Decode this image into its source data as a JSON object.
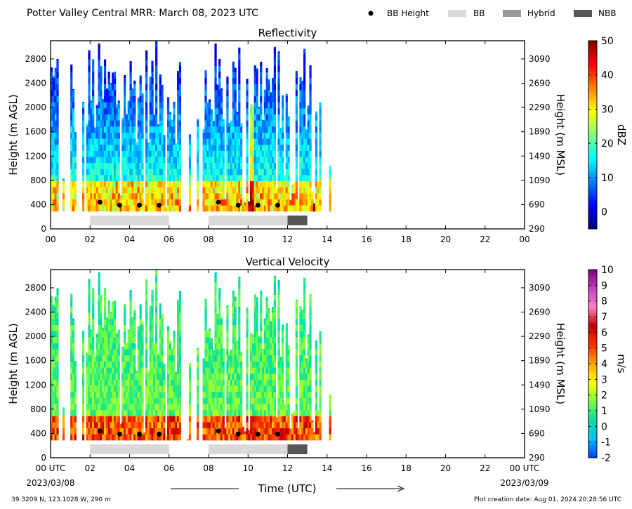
{
  "header": {
    "title": "Potter Valley Central MRR:  March 08, 2023 UTC",
    "legend": [
      {
        "label": "BB Height",
        "kind": "dot",
        "color": "#000000"
      },
      {
        "label": "BB",
        "kind": "swatch",
        "color": "#d9d9d9"
      },
      {
        "label": "Hybrid",
        "kind": "swatch",
        "color": "#999999"
      },
      {
        "label": "NBB",
        "kind": "swatch",
        "color": "#555555"
      }
    ]
  },
  "footer": {
    "location": "39.3209 N, 123.1028 W, 290 m",
    "creation": "Plot creation date: Aug 01, 2024 20:28:56 UTC",
    "time_label": "Time (UTC)",
    "start_date": "2023/03/08",
    "end_date": "2023/03/09"
  },
  "chart_data": [
    {
      "type": "heatmap",
      "title": "Reflectivity",
      "ylabel": "Height (m AGL)",
      "y2label": "Height (m MSL)",
      "xlim": [
        0,
        24
      ],
      "ylim": [
        0,
        3100
      ],
      "x_ticks": [
        "00",
        "02",
        "04",
        "06",
        "08",
        "10",
        "12",
        "14",
        "16",
        "18",
        "20",
        "22",
        "00"
      ],
      "y_ticks": [
        0,
        400,
        800,
        1200,
        1600,
        2000,
        2400,
        2800
      ],
      "y2_ticks": [
        290,
        690,
        1090,
        1490,
        1890,
        2290,
        2690,
        3090
      ],
      "colorbar": {
        "label": "dBZ",
        "min": -5,
        "max": 50,
        "ticks": [
          0,
          10,
          20,
          30,
          40,
          50
        ],
        "stops": [
          "#00007f",
          "#0000ff",
          "#0080ff",
          "#00ffff",
          "#80ff80",
          "#ffff00",
          "#ff8000",
          "#ff0000",
          "#7f0000"
        ]
      },
      "bb_height_points": [
        [
          2.5,
          440
        ],
        [
          3.5,
          390
        ],
        [
          4.5,
          390
        ],
        [
          5.5,
          390
        ],
        [
          8.5,
          440
        ],
        [
          9.5,
          390
        ],
        [
          10.5,
          390
        ],
        [
          11.5,
          390
        ]
      ],
      "bb_periods": [
        {
          "type": "BB",
          "start": 2,
          "end": 6
        },
        {
          "type": "BB",
          "start": 8,
          "end": 12
        },
        {
          "type": "NBB",
          "start": 12,
          "end": 13
        }
      ]
    },
    {
      "type": "heatmap",
      "title": "Vertical Velocity",
      "ylabel": "Height (m AGL)",
      "y2label": "Height (m MSL)",
      "xlim": [
        0,
        24
      ],
      "ylim": [
        0,
        3100
      ],
      "x_ticks": [
        "00 UTC",
        "02",
        "04",
        "06",
        "08",
        "10",
        "12",
        "14",
        "16",
        "18",
        "20",
        "22",
        "00 UTC"
      ],
      "y_ticks": [
        0,
        400,
        800,
        1200,
        1600,
        2000,
        2400,
        2800
      ],
      "y2_ticks": [
        290,
        690,
        1090,
        1490,
        1890,
        2290,
        2690,
        3090
      ],
      "colorbar": {
        "label": "m/s",
        "min": -2,
        "max": 10,
        "ticks": [
          -2,
          -1,
          0,
          1,
          2,
          3,
          4,
          5,
          6,
          7,
          8,
          9,
          10
        ],
        "stops": [
          "#0040ff",
          "#00c0ff",
          "#00e0a0",
          "#80ff40",
          "#ffff00",
          "#ffa000",
          "#ff3000",
          "#c00000",
          "#ff80c0",
          "#c040c0",
          "#800080"
        ]
      },
      "bb_height_points": [
        [
          2.5,
          440
        ],
        [
          3.5,
          390
        ],
        [
          4.5,
          390
        ],
        [
          5.5,
          390
        ],
        [
          8.5,
          440
        ],
        [
          9.5,
          390
        ],
        [
          10.5,
          390
        ],
        [
          11.5,
          390
        ]
      ],
      "bb_periods": [
        {
          "type": "BB",
          "start": 2,
          "end": 6
        },
        {
          "type": "BB",
          "start": 8,
          "end": 12
        },
        {
          "type": "NBB",
          "start": 12,
          "end": 13
        }
      ]
    }
  ]
}
